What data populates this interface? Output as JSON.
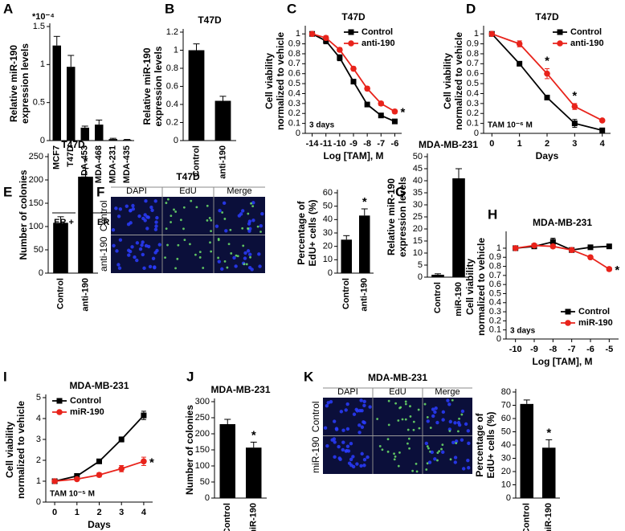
{
  "chart_data": [
    {
      "panel": "A",
      "type": "bar",
      "ylabel": [
        "Relative miR-190",
        "expression levels"
      ],
      "scale_note": "*10⁻⁴",
      "categories": [
        "MCF7",
        "T47D",
        "MDA-453",
        "MDA-468",
        "MDA-231",
        "MDA-435"
      ],
      "values": [
        1.25,
        0.97,
        0.17,
        0.21,
        0.02,
        0.01
      ],
      "errors": [
        0.12,
        0.15,
        0.02,
        0.06,
        0.01,
        0.005
      ],
      "color": "#000000",
      "ylim": [
        0,
        1.5
      ],
      "yticks": [
        0,
        0.5,
        1,
        1.5
      ],
      "group_labels": [
        "ER +",
        "ER -"
      ]
    },
    {
      "panel": "B",
      "type": "bar",
      "title": "T47D",
      "ylabel": [
        "Relative miR-190",
        "expression levels"
      ],
      "categories": [
        "Control",
        "anti-190"
      ],
      "values": [
        1,
        0.44
      ],
      "errors": [
        0.07,
        0.05
      ],
      "color": "#000000",
      "ylim": [
        0,
        1.2
      ],
      "yticks": [
        0,
        0.2,
        0.4,
        0.6,
        0.8,
        1,
        1.2
      ]
    },
    {
      "panel": "C",
      "type": "line",
      "title": "T47D",
      "ylabel": [
        "Cell viability",
        "normalized to vehicle"
      ],
      "xlabel": "Log [TAM], M",
      "categories": [
        "-14",
        "-11",
        "-10",
        "-9",
        "-8",
        "-7",
        "-6"
      ],
      "series": [
        {
          "name": "Control",
          "color": "#000000",
          "marker": "square",
          "values": [
            1,
            0.93,
            0.76,
            0.52,
            0.29,
            0.18,
            0.12
          ],
          "errors": [
            0.01,
            0.03,
            0.03,
            0.02,
            0.02,
            0.01,
            0.01
          ]
        },
        {
          "name": "anti-190",
          "color": "#e8231b",
          "marker": "circle",
          "values": [
            1,
            0.96,
            0.84,
            0.65,
            0.45,
            0.3,
            0.22
          ],
          "errors": [
            0.01,
            0.02,
            0.02,
            0.02,
            0.02,
            0.02,
            0.02
          ],
          "markers": [
            null,
            null,
            null,
            null,
            null,
            null,
            "*"
          ]
        }
      ],
      "ylim": [
        0,
        1.05
      ],
      "yticks": [
        0,
        0.1,
        0.2,
        0.3,
        0.4,
        0.5,
        0.6,
        0.7,
        0.8,
        0.9,
        1
      ],
      "legend": "upper right",
      "note": "3 days"
    },
    {
      "panel": "D",
      "type": "line",
      "title": "T47D",
      "ylabel": [
        "Cell viability",
        "normalized to vehicle"
      ],
      "xlabel": "Days",
      "x": [
        0,
        1,
        2,
        3,
        4
      ],
      "series": [
        {
          "name": "Control",
          "color": "#000000",
          "marker": "square",
          "values": [
            1,
            0.7,
            0.36,
            0.1,
            0.03
          ],
          "errors": [
            0.01,
            0.02,
            0.02,
            0.04,
            0.01
          ]
        },
        {
          "name": "anti-190",
          "color": "#e8231b",
          "marker": "circle",
          "values": [
            1,
            0.9,
            0.6,
            0.27,
            0.13
          ],
          "errors": [
            0.01,
            0.03,
            0.05,
            0.03,
            0.01
          ],
          "markers": [
            null,
            null,
            "*",
            "*",
            null
          ]
        }
      ],
      "xlim": [
        -0.3,
        4.3
      ],
      "xticks": [
        0,
        1,
        2,
        3,
        4
      ],
      "ylim": [
        0,
        1.05
      ],
      "yticks": [
        0,
        0.1,
        0.2,
        0.3,
        0.4,
        0.5,
        0.6,
        0.7,
        0.8,
        0.9,
        1
      ],
      "legend": "upper right",
      "note": "TAM 10⁻⁶ M"
    },
    {
      "panel": "E",
      "type": "bar",
      "title": "T47D",
      "ylabel": [
        "Number of colonies"
      ],
      "categories": [
        "Control",
        "anti-190"
      ],
      "values": [
        108,
        207
      ],
      "errors": [
        13,
        18
      ],
      "markers": [
        null,
        "*"
      ],
      "color": "#000000",
      "ylim": [
        0,
        250
      ],
      "yticks": [
        0,
        50,
        100,
        150,
        200,
        250
      ]
    },
    {
      "panel": "F",
      "type": "bar",
      "images": {
        "title": "T47D",
        "columns": [
          "DAPI",
          "EdU",
          "Merge"
        ],
        "rows": [
          "Control",
          "anti-190"
        ]
      },
      "ylabel": [
        "Percentage of",
        "EdU+ cells (%)"
      ],
      "categories": [
        "Control",
        "anti-190"
      ],
      "values": [
        25,
        43
      ],
      "errors": [
        3,
        5
      ],
      "markers": [
        null,
        "*"
      ],
      "color": "#000000",
      "ylim": [
        0,
        60
      ],
      "yticks": [
        0,
        10,
        20,
        30,
        40,
        50,
        60
      ]
    },
    {
      "panel": "G",
      "type": "bar",
      "title": "MDA-MB-231",
      "ylabel": [
        "Relative miR-190",
        "expression levels"
      ],
      "categories": [
        "Control",
        "miR-190"
      ],
      "values": [
        1,
        41
      ],
      "errors": [
        0.4,
        4
      ],
      "color": "#000000",
      "ylim": [
        0,
        50
      ],
      "yticks": [
        0,
        5,
        10,
        15,
        20,
        25,
        30,
        35,
        40,
        45,
        50
      ]
    },
    {
      "panel": "H",
      "type": "line",
      "title": "MDA-MB-231",
      "ylabel": [
        "Cell viability",
        "normalized to vehicle"
      ],
      "xlabel": "Log [TAM], M",
      "categories": [
        "-10",
        "-9",
        "-8",
        "-7",
        "-6",
        "-5"
      ],
      "series": [
        {
          "name": "Control",
          "color": "#000000",
          "marker": "square",
          "values": [
            1,
            1.02,
            1.07,
            0.98,
            1.01,
            1.02
          ],
          "errors": [
            0.02,
            0.01,
            0.04,
            0.01,
            0.01,
            0.01
          ]
        },
        {
          "name": "miR-190",
          "color": "#e8231b",
          "marker": "circle",
          "values": [
            1,
            1.03,
            1.02,
            0.98,
            0.9,
            0.77
          ],
          "errors": [
            0.02,
            0.01,
            0.02,
            0.01,
            0.02,
            0.02
          ],
          "markers": [
            null,
            null,
            null,
            null,
            null,
            "*"
          ]
        }
      ],
      "ylim": [
        0,
        1.15
      ],
      "yticks": [
        0,
        0.1,
        0.2,
        0.3,
        0.4,
        0.5,
        0.6,
        0.7,
        0.8,
        0.9,
        1
      ],
      "legend": "lower right",
      "note": "3 days"
    },
    {
      "panel": "I",
      "type": "line",
      "title": "MDA-MB-231",
      "ylabel": [
        "Cell viability",
        "normalized to vehicle"
      ],
      "xlabel": "Days",
      "x": [
        0,
        1,
        2,
        3,
        4
      ],
      "series": [
        {
          "name": "Control",
          "color": "#000000",
          "marker": "square",
          "values": [
            1,
            1.25,
            1.95,
            3,
            4.15
          ],
          "errors": [
            0.05,
            0.05,
            0.07,
            0.12,
            0.2
          ]
        },
        {
          "name": "miR-190",
          "color": "#e8231b",
          "marker": "circle",
          "values": [
            1,
            1.1,
            1.3,
            1.6,
            1.95
          ],
          "errors": [
            0.05,
            0.05,
            0.1,
            0.15,
            0.2
          ],
          "markers": [
            null,
            null,
            null,
            null,
            "*"
          ]
        }
      ],
      "xlim": [
        -0.4,
        4.4
      ],
      "xticks": [
        0,
        1,
        2,
        3,
        4
      ],
      "ylim": [
        0,
        5
      ],
      "yticks": [
        0,
        1,
        2,
        3,
        4,
        5
      ],
      "legend": "upper left",
      "note": "TAM 10⁻⁵ M"
    },
    {
      "panel": "J",
      "type": "bar",
      "title": "MDA-MB-231",
      "ylabel": [
        "Number of colonies"
      ],
      "categories": [
        "Control",
        "miR-190"
      ],
      "values": [
        230,
        157
      ],
      "errors": [
        15,
        17
      ],
      "markers": [
        null,
        "*"
      ],
      "color": "#000000",
      "ylim": [
        0,
        300
      ],
      "yticks": [
        0,
        50,
        100,
        150,
        200,
        250,
        300
      ]
    },
    {
      "panel": "K",
      "type": "bar",
      "images": {
        "title": "MDA-MB-231",
        "columns": [
          "DAPI",
          "EdU",
          "Merge"
        ],
        "rows": [
          "Control",
          "miR-190"
        ]
      },
      "ylabel": [
        "Percentage of",
        "EdU+ cells (%)"
      ],
      "categories": [
        "Control",
        "miR-190"
      ],
      "values": [
        71,
        38
      ],
      "errors": [
        3,
        6
      ],
      "markers": [
        null,
        "*"
      ],
      "color": "#000000",
      "ylim": [
        0,
        80
      ],
      "yticks": [
        0,
        10,
        20,
        30,
        40,
        50,
        60,
        70,
        80
      ]
    }
  ]
}
